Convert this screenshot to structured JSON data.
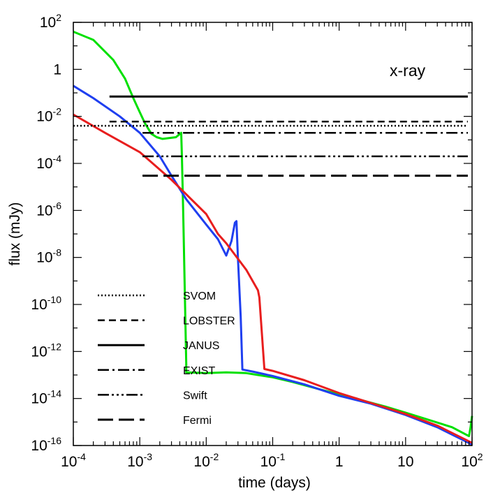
{
  "chart_data": {
    "type": "line",
    "xlabel": "time (days)",
    "ylabel": "flux (mJy)",
    "x_scale": "log",
    "y_scale": "log",
    "xlim": [
      0.0001,
      100
    ],
    "ylim": [
      1e-16,
      100
    ],
    "grid": false,
    "x_ticks": [
      {
        "value": 0.0001,
        "base": "10",
        "exp": "-4"
      },
      {
        "value": 0.001,
        "base": "10",
        "exp": "-3"
      },
      {
        "value": 0.01,
        "base": "10",
        "exp": "-2"
      },
      {
        "value": 0.1,
        "base": "10",
        "exp": "-1"
      },
      {
        "value": 1,
        "base": "1",
        "exp": ""
      },
      {
        "value": 10,
        "base": "10",
        "exp": ""
      },
      {
        "value": 100,
        "base": "10",
        "exp": "2"
      }
    ],
    "y_ticks": [
      {
        "value": 100,
        "base": "10",
        "exp": "2"
      },
      {
        "value": 1,
        "base": "1",
        "exp": ""
      },
      {
        "value": 0.01,
        "base": "10",
        "exp": "-2"
      },
      {
        "value": 0.0001,
        "base": "10",
        "exp": "-4"
      },
      {
        "value": 1e-06,
        "base": "10",
        "exp": "-6"
      },
      {
        "value": 1e-08,
        "base": "10",
        "exp": "-8"
      },
      {
        "value": 1e-10,
        "base": "10",
        "exp": "-10"
      },
      {
        "value": 1e-12,
        "base": "10",
        "exp": "-12"
      },
      {
        "value": 1e-14,
        "base": "10",
        "exp": "-14"
      },
      {
        "value": 1e-16,
        "base": "10",
        "exp": "-16"
      }
    ],
    "annotation": "x-ray",
    "series": [
      {
        "color": "#00e000",
        "points": [
          [
            0.0001,
            40
          ],
          [
            0.0002,
            18
          ],
          [
            0.0004,
            2.5
          ],
          [
            0.0006,
            0.4
          ],
          [
            0.0008,
            0.06
          ],
          [
            0.001,
            0.015
          ],
          [
            0.0012,
            0.005
          ],
          [
            0.0015,
            0.0018
          ],
          [
            0.0018,
            0.0013
          ],
          [
            0.0022,
            0.0011
          ],
          [
            0.0035,
            0.0013
          ],
          [
            0.0042,
            0.002
          ],
          [
            0.0043,
            0.0002
          ],
          [
            0.0045,
            1e-06
          ],
          [
            0.0048,
            1e-10
          ],
          [
            0.005,
            3e-13
          ],
          [
            0.005,
            1.3e-13
          ],
          [
            0.01,
            1.2e-13
          ],
          [
            0.02,
            1.3e-13
          ],
          [
            0.04,
            1.2e-13
          ],
          [
            0.06,
            1e-13
          ],
          [
            0.1,
            8e-14
          ],
          [
            0.2,
            5e-14
          ],
          [
            0.5,
            2.5e-14
          ],
          [
            1,
            1.5e-14
          ],
          [
            5,
            4.5e-15
          ],
          [
            10,
            2.5e-15
          ],
          [
            50,
            6e-16
          ],
          [
            90,
            2.5e-16
          ],
          [
            95,
            6e-16
          ],
          [
            100,
            1.8e-15
          ]
        ]
      },
      {
        "color": "#1f3ff0",
        "points": [
          [
            0.0001,
            0.2
          ],
          [
            0.0002,
            0.06
          ],
          [
            0.0005,
            0.01
          ],
          [
            0.001,
            0.002
          ],
          [
            0.002,
            0.0002
          ],
          [
            0.003,
            3e-05
          ],
          [
            0.005,
            3e-06
          ],
          [
            0.01,
            2.5e-07
          ],
          [
            0.015,
            6e-08
          ],
          [
            0.02,
            1.2e-08
          ],
          [
            0.024,
            5e-08
          ],
          [
            0.027,
            3e-07
          ],
          [
            0.0285,
            3.5e-07
          ],
          [
            0.03,
            1e-08
          ],
          [
            0.033,
            3e-11
          ],
          [
            0.035,
            1.7e-13
          ],
          [
            0.05,
            1.4e-13
          ],
          [
            0.1,
            9e-14
          ],
          [
            0.3,
            4e-14
          ],
          [
            1,
            1.3e-14
          ],
          [
            3,
            6e-15
          ],
          [
            10,
            2e-15
          ],
          [
            30,
            6e-16
          ],
          [
            100,
            1.1e-16
          ]
        ]
      },
      {
        "color": "#e81e1e",
        "points": [
          [
            0.0001,
            0.012
          ],
          [
            0.0003,
            0.002
          ],
          [
            0.001,
            0.0003
          ],
          [
            0.003,
            2e-05
          ],
          [
            0.01,
            7e-07
          ],
          [
            0.015,
            1e-07
          ],
          [
            0.02,
            4e-08
          ],
          [
            0.04,
            3e-09
          ],
          [
            0.06,
            4e-10
          ],
          [
            0.063,
            2e-10
          ],
          [
            0.075,
            1.8e-13
          ],
          [
            0.1,
            1.5e-13
          ],
          [
            0.3,
            6e-14
          ],
          [
            1,
            1.7e-14
          ],
          [
            3,
            6.5e-15
          ],
          [
            10,
            2.2e-15
          ],
          [
            30,
            7e-16
          ],
          [
            100,
            1.3e-16
          ]
        ]
      }
    ],
    "instruments": [
      {
        "name": "SVOM",
        "dash": "2,3",
        "x_start": 0.0001,
        "y": 0.004,
        "width": 2.5
      },
      {
        "name": "LOBSTER",
        "dash": "10,6",
        "x_start": 0.00035,
        "y": 0.006,
        "width": 2.5
      },
      {
        "name": "JANUS",
        "dash": "",
        "x_start": 0.00035,
        "y": 0.07,
        "width": 3
      },
      {
        "name": "EXIST",
        "dash": "16,5,3,5",
        "x_start": 0.0011,
        "y": 0.002,
        "width": 2.5
      },
      {
        "name": "Swift",
        "dash": "16,4,3,4,3,4,3,4",
        "x_start": 0.0011,
        "y": 0.0002,
        "width": 2.5
      },
      {
        "name": "Fermi",
        "dash": "22,8",
        "x_start": 0.0011,
        "y": 3e-05,
        "width": 3
      }
    ],
    "legend": {
      "placement": "lower-left"
    }
  }
}
